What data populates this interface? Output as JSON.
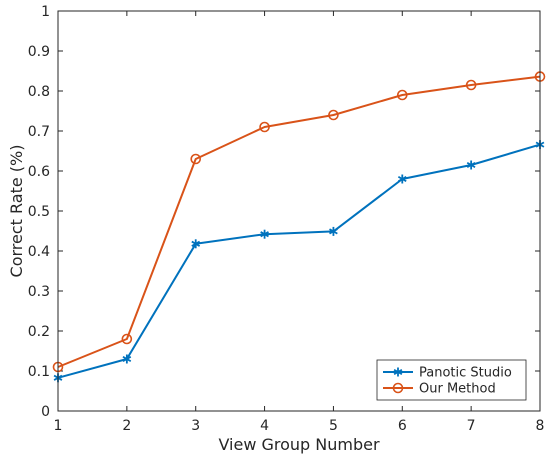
{
  "chart_data": {
    "type": "line",
    "xlabel": "View Group Number",
    "ylabel": "Correct Rate (%)",
    "x": [
      1,
      2,
      3,
      4,
      5,
      6,
      7,
      8
    ],
    "xlim": [
      1,
      8
    ],
    "ylim": [
      0,
      1
    ],
    "xticks": [
      "1",
      "2",
      "3",
      "4",
      "5",
      "6",
      "7",
      "8"
    ],
    "yticks": [
      "0",
      "0.1",
      "0.2",
      "0.3",
      "0.4",
      "0.5",
      "0.6",
      "0.7",
      "0.8",
      "0.9",
      "1"
    ],
    "grid": false,
    "legend_position": "bottom-right",
    "series": [
      {
        "name": "Panotic Studio",
        "color": "#0072BD",
        "marker": "asterisk",
        "values": [
          0.083,
          0.13,
          0.418,
          0.442,
          0.449,
          0.58,
          0.615,
          0.666
        ]
      },
      {
        "name": "Our Method",
        "color": "#D95319",
        "marker": "circle",
        "values": [
          0.11,
          0.18,
          0.63,
          0.71,
          0.74,
          0.79,
          0.815,
          0.836
        ]
      }
    ]
  }
}
